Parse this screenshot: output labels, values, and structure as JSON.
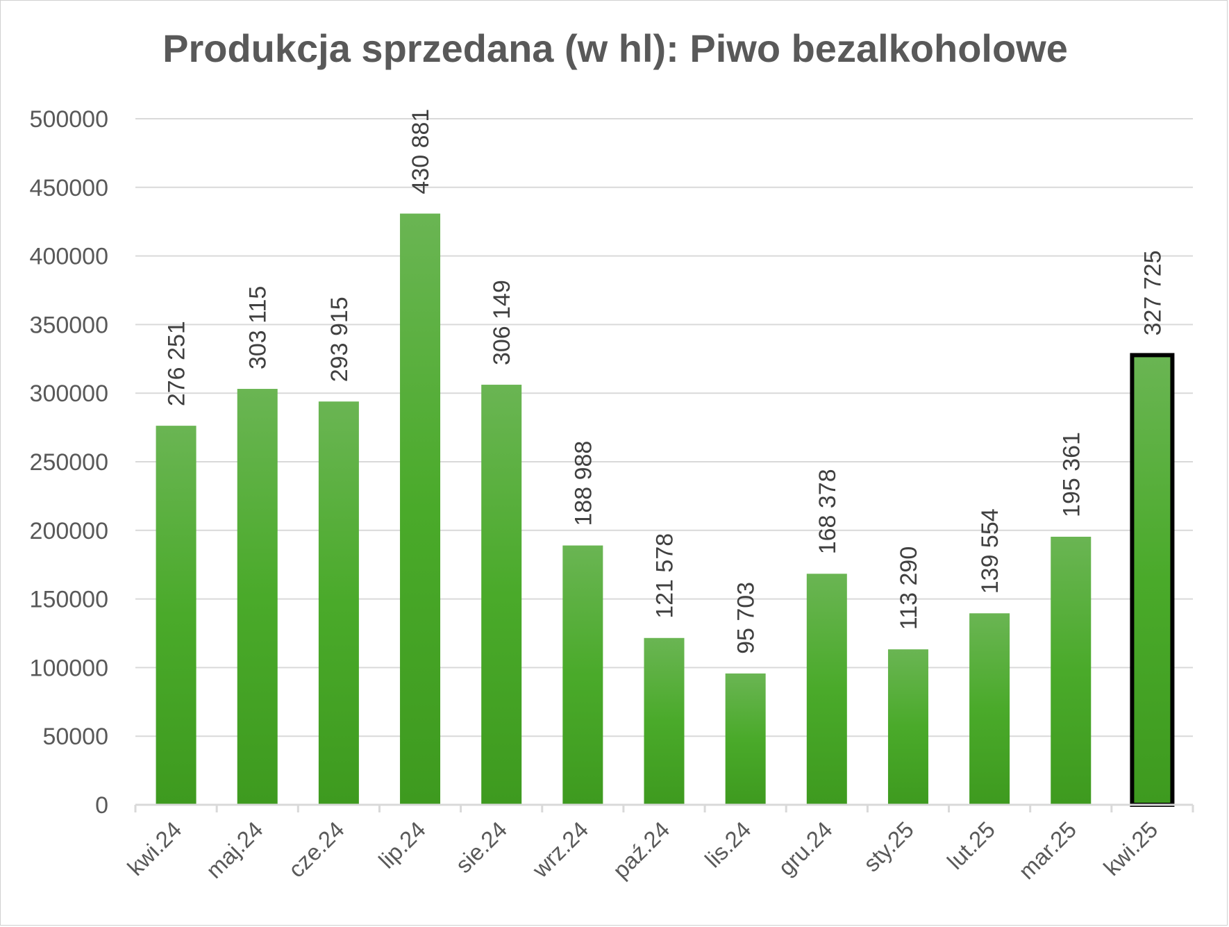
{
  "colors": {
    "bar_top": "#6ab553",
    "bar_bottom": "#3e9a1f",
    "highlight_outline": "#000000",
    "grid": "#d9d9d9",
    "axis": "#d9d9d9",
    "text": "#595959"
  },
  "chart_data": {
    "type": "bar",
    "title": "Produkcja sprzedana (w hl): Piwo bezalkoholowe",
    "xlabel": "",
    "ylabel": "",
    "ylim": [
      0,
      500000
    ],
    "yticks": [
      0,
      50000,
      100000,
      150000,
      200000,
      250000,
      300000,
      350000,
      400000,
      450000,
      500000
    ],
    "ytick_labels": [
      "0",
      "50000",
      "100000",
      "150000",
      "200000",
      "250000",
      "300000",
      "350000",
      "400000",
      "450000",
      "500000"
    ],
    "grid": true,
    "legend": "none",
    "categories": [
      "kwi.24",
      "maj.24",
      "cze.24",
      "lip.24",
      "sie.24",
      "wrz.24",
      "paź.24",
      "lis.24",
      "gru.24",
      "sty.25",
      "lut.25",
      "mar.25",
      "kwi.25"
    ],
    "values": [
      276251,
      303115,
      293915,
      430881,
      306149,
      188988,
      121578,
      95703,
      168378,
      113290,
      139554,
      195361,
      327725
    ],
    "data_labels": [
      "276 251",
      "303 115",
      "293 915",
      "430 881",
      "306 149",
      "188 988",
      "121 578",
      "95 703",
      "168 378",
      "113 290",
      "139 554",
      "195 361",
      "327 725"
    ],
    "highlighted_category": "kwi.25"
  }
}
